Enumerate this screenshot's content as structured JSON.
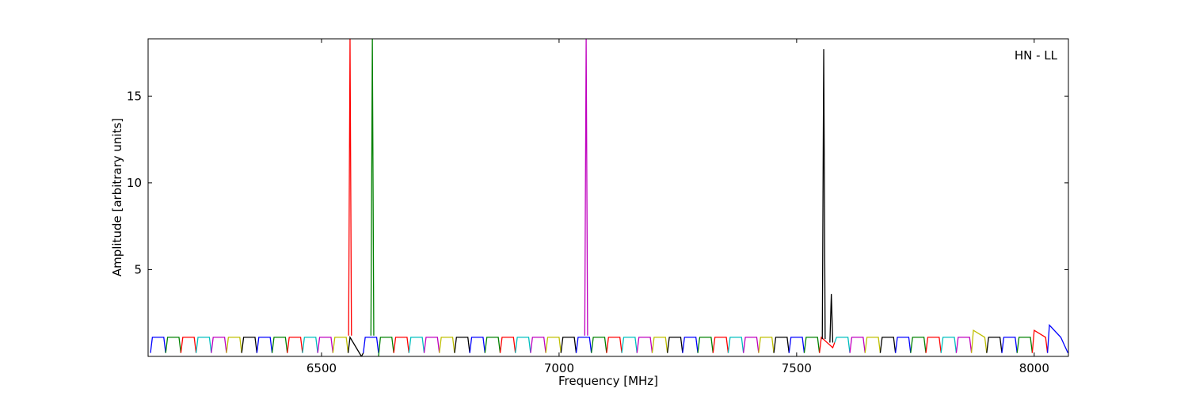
{
  "chart_data": {
    "type": "line",
    "xlabel": "Frequency [MHz]",
    "ylabel": "Amplitude [arbitrary units]",
    "annotation": "HN - LL",
    "xlim": [
      6135,
      8072
    ],
    "ylim": [
      0,
      18.3
    ],
    "xticks": [
      6500,
      7000,
      7500,
      8000
    ],
    "yticks": [
      5,
      10,
      15
    ],
    "series": [
      {
        "color": "#0000ff",
        "x": [
          6140,
          6144,
          6168,
          6172
        ],
        "values": [
          0.2,
          1.1,
          1.1,
          0.2
        ]
      },
      {
        "color": "#008000",
        "x": [
          6172,
          6176,
          6200,
          6204
        ],
        "values": [
          0.2,
          1.1,
          1.1,
          0.2
        ]
      },
      {
        "color": "#ff0000",
        "x": [
          6204,
          6208,
          6232,
          6236
        ],
        "values": [
          0.2,
          1.1,
          1.1,
          0.2
        ]
      },
      {
        "color": "#00bfbf",
        "x": [
          6236,
          6240,
          6264,
          6268
        ],
        "values": [
          0.2,
          1.1,
          1.1,
          0.2
        ]
      },
      {
        "color": "#bf00bf",
        "x": [
          6268,
          6272,
          6296,
          6300
        ],
        "values": [
          0.2,
          1.1,
          1.1,
          0.2
        ]
      },
      {
        "color": "#bfbf00",
        "x": [
          6300,
          6304,
          6328,
          6332
        ],
        "values": [
          0.2,
          1.1,
          1.1,
          0.2
        ]
      },
      {
        "color": "#000000",
        "x": [
          6332,
          6336,
          6360,
          6364
        ],
        "values": [
          0.2,
          1.1,
          1.1,
          0.2
        ]
      },
      {
        "color": "#0000ff",
        "x": [
          6364,
          6368,
          6392,
          6396
        ],
        "values": [
          0.2,
          1.1,
          1.1,
          0.2
        ]
      },
      {
        "color": "#008000",
        "x": [
          6396,
          6400,
          6424,
          6428
        ],
        "values": [
          0.2,
          1.1,
          1.1,
          0.2
        ]
      },
      {
        "color": "#ff0000",
        "x": [
          6428,
          6432,
          6456,
          6460
        ],
        "values": [
          0.2,
          1.1,
          1.1,
          0.2
        ]
      },
      {
        "color": "#00bfbf",
        "x": [
          6460,
          6464,
          6488,
          6492
        ],
        "values": [
          0.2,
          1.1,
          1.1,
          0.2
        ]
      },
      {
        "color": "#bf00bf",
        "x": [
          6492,
          6496,
          6520,
          6524
        ],
        "values": [
          0.2,
          1.1,
          1.1,
          0.2
        ]
      },
      {
        "color": "#bfbf00",
        "x": [
          6524,
          6528,
          6552,
          6556
        ],
        "values": [
          0.2,
          1.1,
          1.1,
          0.2
        ]
      },
      {
        "color": "#000000",
        "x": [
          6556,
          6560,
          6584,
          6588
        ],
        "values": [
          0.2,
          1.1,
          0.0,
          0.2
        ]
      },
      {
        "color": "#0000ff",
        "x": [
          6588,
          6592,
          6616,
          6620
        ],
        "values": [
          0.2,
          1.1,
          1.1,
          0.2
        ]
      },
      {
        "color": "#008000",
        "x": [
          6620,
          6624,
          6648,
          6652
        ],
        "values": [
          0.0,
          1.1,
          1.1,
          0.2
        ]
      },
      {
        "color": "#ff0000",
        "x": [
          6652,
          6656,
          6680,
          6684
        ],
        "values": [
          0.2,
          1.1,
          1.1,
          0.2
        ]
      },
      {
        "color": "#00bfbf",
        "x": [
          6684,
          6688,
          6712,
          6716
        ],
        "values": [
          0.2,
          1.1,
          1.1,
          0.2
        ]
      },
      {
        "color": "#bf00bf",
        "x": [
          6716,
          6720,
          6744,
          6748
        ],
        "values": [
          0.2,
          1.1,
          1.1,
          0.2
        ]
      },
      {
        "color": "#bfbf00",
        "x": [
          6748,
          6752,
          6776,
          6780
        ],
        "values": [
          0.2,
          1.1,
          1.1,
          0.2
        ]
      },
      {
        "color": "#000000",
        "x": [
          6780,
          6784,
          6808,
          6812
        ],
        "values": [
          0.2,
          1.1,
          1.1,
          0.2
        ]
      },
      {
        "color": "#0000ff",
        "x": [
          6812,
          6816,
          6840,
          6844
        ],
        "values": [
          0.2,
          1.1,
          1.1,
          0.2
        ]
      },
      {
        "color": "#008000",
        "x": [
          6844,
          6848,
          6872,
          6876
        ],
        "values": [
          0.2,
          1.1,
          1.1,
          0.2
        ]
      },
      {
        "color": "#ff0000",
        "x": [
          6876,
          6880,
          6904,
          6908
        ],
        "values": [
          0.2,
          1.1,
          1.1,
          0.2
        ]
      },
      {
        "color": "#00bfbf",
        "x": [
          6908,
          6912,
          6936,
          6940
        ],
        "values": [
          0.2,
          1.1,
          1.1,
          0.2
        ]
      },
      {
        "color": "#bf00bf",
        "x": [
          6940,
          6944,
          6968,
          6972
        ],
        "values": [
          0.2,
          1.1,
          1.1,
          0.2
        ]
      },
      {
        "color": "#bfbf00",
        "x": [
          6972,
          6976,
          7000,
          7004
        ],
        "values": [
          0.2,
          1.1,
          1.1,
          0.2
        ]
      },
      {
        "color": "#000000",
        "x": [
          7004,
          7008,
          7032,
          7036
        ],
        "values": [
          0.2,
          1.1,
          1.1,
          0.2
        ]
      },
      {
        "color": "#0000ff",
        "x": [
          7036,
          7040,
          7064,
          7068
        ],
        "values": [
          0.2,
          1.1,
          1.1,
          0.2
        ]
      },
      {
        "color": "#008000",
        "x": [
          7068,
          7072,
          7096,
          7100
        ],
        "values": [
          0.2,
          1.1,
          1.1,
          0.2
        ]
      },
      {
        "color": "#ff0000",
        "x": [
          7100,
          7104,
          7128,
          7132
        ],
        "values": [
          0.2,
          1.1,
          1.1,
          0.2
        ]
      },
      {
        "color": "#00bfbf",
        "x": [
          7132,
          7136,
          7160,
          7164
        ],
        "values": [
          0.2,
          1.1,
          1.1,
          0.2
        ]
      },
      {
        "color": "#bf00bf",
        "x": [
          7164,
          7168,
          7192,
          7196
        ],
        "values": [
          0.2,
          1.1,
          1.1,
          0.2
        ]
      },
      {
        "color": "#bfbf00",
        "x": [
          7196,
          7200,
          7224,
          7228
        ],
        "values": [
          0.2,
          1.1,
          1.1,
          0.2
        ]
      },
      {
        "color": "#000000",
        "x": [
          7228,
          7232,
          7256,
          7260
        ],
        "values": [
          0.2,
          1.1,
          1.1,
          0.2
        ]
      },
      {
        "color": "#0000ff",
        "x": [
          7260,
          7264,
          7288,
          7292
        ],
        "values": [
          0.2,
          1.1,
          1.1,
          0.2
        ]
      },
      {
        "color": "#008000",
        "x": [
          7292,
          7296,
          7320,
          7324
        ],
        "values": [
          0.2,
          1.1,
          1.1,
          0.2
        ]
      },
      {
        "color": "#ff0000",
        "x": [
          7324,
          7328,
          7352,
          7356
        ],
        "values": [
          0.2,
          1.1,
          1.1,
          0.2
        ]
      },
      {
        "color": "#00bfbf",
        "x": [
          7356,
          7360,
          7384,
          7388
        ],
        "values": [
          0.2,
          1.1,
          1.1,
          0.2
        ]
      },
      {
        "color": "#bf00bf",
        "x": [
          7388,
          7392,
          7416,
          7420
        ],
        "values": [
          0.2,
          1.1,
          1.1,
          0.2
        ]
      },
      {
        "color": "#bfbf00",
        "x": [
          7420,
          7424,
          7448,
          7452
        ],
        "values": [
          0.2,
          1.1,
          1.1,
          0.2
        ]
      },
      {
        "color": "#000000",
        "x": [
          7452,
          7456,
          7480,
          7484
        ],
        "values": [
          0.2,
          1.1,
          1.1,
          0.2
        ]
      },
      {
        "color": "#0000ff",
        "x": [
          7484,
          7488,
          7512,
          7516
        ],
        "values": [
          0.2,
          1.1,
          1.1,
          0.2
        ]
      },
      {
        "color": "#008000",
        "x": [
          7516,
          7520,
          7544,
          7548
        ],
        "values": [
          0.2,
          1.1,
          1.1,
          0.2
        ]
      },
      {
        "color": "#ff0000",
        "x": [
          7548,
          7552,
          7576,
          7580
        ],
        "values": [
          0.2,
          1.1,
          0.5,
          0.8
        ]
      },
      {
        "color": "#00bfbf",
        "x": [
          7580,
          7584,
          7608,
          7612
        ],
        "values": [
          0.8,
          1.1,
          1.1,
          0.2
        ]
      },
      {
        "color": "#bf00bf",
        "x": [
          7612,
          7616,
          7640,
          7644
        ],
        "values": [
          0.2,
          1.1,
          1.1,
          0.2
        ]
      },
      {
        "color": "#bfbf00",
        "x": [
          7644,
          7648,
          7672,
          7676
        ],
        "values": [
          0.2,
          1.1,
          1.1,
          0.2
        ]
      },
      {
        "color": "#000000",
        "x": [
          7676,
          7680,
          7704,
          7708
        ],
        "values": [
          0.2,
          1.1,
          1.1,
          0.2
        ]
      },
      {
        "color": "#0000ff",
        "x": [
          7708,
          7712,
          7736,
          7740
        ],
        "values": [
          0.2,
          1.1,
          1.1,
          0.2
        ]
      },
      {
        "color": "#008000",
        "x": [
          7740,
          7744,
          7768,
          7772
        ],
        "values": [
          0.2,
          1.1,
          1.1,
          0.2
        ]
      },
      {
        "color": "#ff0000",
        "x": [
          7772,
          7776,
          7800,
          7804
        ],
        "values": [
          0.2,
          1.1,
          1.1,
          0.2
        ]
      },
      {
        "color": "#00bfbf",
        "x": [
          7804,
          7808,
          7832,
          7836
        ],
        "values": [
          0.2,
          1.1,
          1.1,
          0.2
        ]
      },
      {
        "color": "#bf00bf",
        "x": [
          7836,
          7840,
          7864,
          7868
        ],
        "values": [
          0.2,
          1.1,
          1.1,
          0.2
        ]
      },
      {
        "color": "#bfbf00",
        "x": [
          7868,
          7872,
          7896,
          7900
        ],
        "values": [
          0.2,
          1.5,
          1.1,
          0.2
        ]
      },
      {
        "color": "#000000",
        "x": [
          7900,
          7904,
          7928,
          7932
        ],
        "values": [
          0.2,
          1.1,
          1.1,
          0.2
        ]
      },
      {
        "color": "#0000ff",
        "x": [
          7932,
          7936,
          7960,
          7964
        ],
        "values": [
          0.2,
          1.1,
          1.1,
          0.2
        ]
      },
      {
        "color": "#008000",
        "x": [
          7964,
          7968,
          7992,
          7996
        ],
        "values": [
          0.2,
          1.1,
          1.1,
          0.2
        ]
      },
      {
        "color": "#ff0000",
        "x": [
          7996,
          8000,
          8024,
          8028
        ],
        "values": [
          0.2,
          1.5,
          1.1,
          0.2
        ]
      },
      {
        "color": "#0000ff",
        "x": [
          8028,
          8032,
          8056,
          8071
        ],
        "values": [
          0.2,
          1.8,
          1.1,
          0.2
        ]
      },
      {
        "color": "#ff0000",
        "x": [
          6557,
          6560,
          6563
        ],
        "values": [
          1.2,
          18.3,
          1.2
        ]
      },
      {
        "color": "#008000",
        "x": [
          6604,
          6607,
          6610
        ],
        "values": [
          1.2,
          18.3,
          1.2
        ]
      },
      {
        "color": "#bf00bf",
        "x": [
          7054,
          7057,
          7060
        ],
        "values": [
          1.2,
          18.3,
          1.2
        ]
      },
      {
        "color": "#000000",
        "x": [
          7554,
          7557,
          7560
        ],
        "values": [
          1.0,
          17.7,
          1.0
        ]
      },
      {
        "color": "#000000",
        "x": [
          7570,
          7573,
          7576
        ],
        "values": [
          0.8,
          3.6,
          0.8
        ]
      }
    ]
  }
}
